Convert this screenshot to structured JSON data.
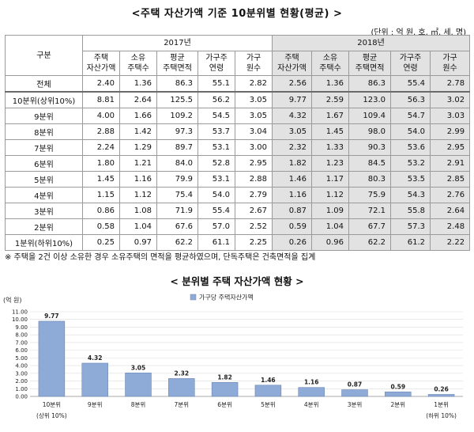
{
  "title": "<주택 자산가액 기준 10분위별 현황(평균) >",
  "unit": "(단위 : 억 원, 호, ㎡, 세, 명)",
  "table": {
    "row_header": "구분",
    "years": [
      "2017년",
      "2018년"
    ],
    "columns": [
      [
        "주택",
        "자산가액"
      ],
      [
        "소유",
        "주택수"
      ],
      [
        "평균",
        "주택면적"
      ],
      [
        "가구주",
        "연령"
      ],
      [
        "가구",
        "원수"
      ]
    ],
    "rows": [
      {
        "label": "전체",
        "v2017": [
          "2.40",
          "1.36",
          "86.3",
          "55.1",
          "2.82"
        ],
        "v2018": [
          "2.56",
          "1.36",
          "86.3",
          "55.4",
          "2.78"
        ]
      },
      {
        "label": "10분위(상위10%)",
        "v2017": [
          "8.81",
          "2.64",
          "125.5",
          "56.2",
          "3.05"
        ],
        "v2018": [
          "9.77",
          "2.59",
          "123.0",
          "56.3",
          "3.02"
        ]
      },
      {
        "label": "9분위",
        "v2017": [
          "4.00",
          "1.66",
          "109.2",
          "54.5",
          "3.05"
        ],
        "v2018": [
          "4.32",
          "1.67",
          "109.4",
          "54.7",
          "3.03"
        ]
      },
      {
        "label": "8분위",
        "v2017": [
          "2.88",
          "1.42",
          "97.3",
          "53.7",
          "3.04"
        ],
        "v2018": [
          "3.05",
          "1.45",
          "98.0",
          "54.0",
          "2.99"
        ]
      },
      {
        "label": "7분위",
        "v2017": [
          "2.24",
          "1.29",
          "89.7",
          "53.1",
          "3.00"
        ],
        "v2018": [
          "2.32",
          "1.33",
          "90.3",
          "53.6",
          "2.95"
        ]
      },
      {
        "label": "6분위",
        "v2017": [
          "1.80",
          "1.21",
          "84.0",
          "52.8",
          "2.95"
        ],
        "v2018": [
          "1.82",
          "1.23",
          "84.5",
          "53.2",
          "2.91"
        ]
      },
      {
        "label": "5분위",
        "v2017": [
          "1.45",
          "1.16",
          "79.9",
          "53.1",
          "2.88"
        ],
        "v2018": [
          "1.46",
          "1.17",
          "80.3",
          "53.5",
          "2.85"
        ]
      },
      {
        "label": "4분위",
        "v2017": [
          "1.15",
          "1.12",
          "75.4",
          "54.0",
          "2.79"
        ],
        "v2018": [
          "1.16",
          "1.12",
          "75.9",
          "54.3",
          "2.76"
        ]
      },
      {
        "label": "3분위",
        "v2017": [
          "0.86",
          "1.08",
          "71.9",
          "55.4",
          "2.67"
        ],
        "v2018": [
          "0.87",
          "1.09",
          "72.1",
          "55.8",
          "2.64"
        ]
      },
      {
        "label": "2분위",
        "v2017": [
          "0.58",
          "1.04",
          "67.6",
          "57.0",
          "2.52"
        ],
        "v2018": [
          "0.59",
          "1.04",
          "67.7",
          "57.3",
          "2.48"
        ]
      },
      {
        "label": "1분위(하위10%)",
        "v2017": [
          "0.25",
          "0.97",
          "62.2",
          "61.1",
          "2.25"
        ],
        "v2018": [
          "0.26",
          "0.96",
          "62.2",
          "61.2",
          "2.22"
        ]
      }
    ]
  },
  "note": "※ 주택을 2건 이상 소유한 경우 소유주택의 면적을 평균하였으며, 단독주택은 건축면적을 집계",
  "chart_title": "< 분위별 주택 자산가액 현황 >",
  "chart_data": {
    "type": "bar",
    "ylabel": "(억 원)",
    "series": [
      {
        "name": "가구당 주택자산가액",
        "values": [
          9.77,
          4.32,
          3.05,
          2.32,
          1.82,
          1.46,
          1.16,
          0.87,
          0.59,
          0.26
        ]
      }
    ],
    "categories": [
      "10분위",
      "9분위",
      "8분위",
      "7분위",
      "6분위",
      "5분위",
      "4분위",
      "3분위",
      "2분위",
      "1분위"
    ],
    "sublabels": [
      "(상위 10%)",
      "",
      "",
      "",
      "",
      "",
      "",
      "",
      "",
      "(하위 10%)"
    ],
    "yticks": [
      "0.00",
      "1.00",
      "2.00",
      "3.00",
      "4.00",
      "5.00",
      "6.00",
      "7.00",
      "8.00",
      "9.00",
      "10.00",
      "11.00"
    ],
    "ylim": [
      0,
      11
    ],
    "legend": "top",
    "colors": {
      "bar": "#8eaad6",
      "bar_stroke": "#6b86b5"
    }
  }
}
